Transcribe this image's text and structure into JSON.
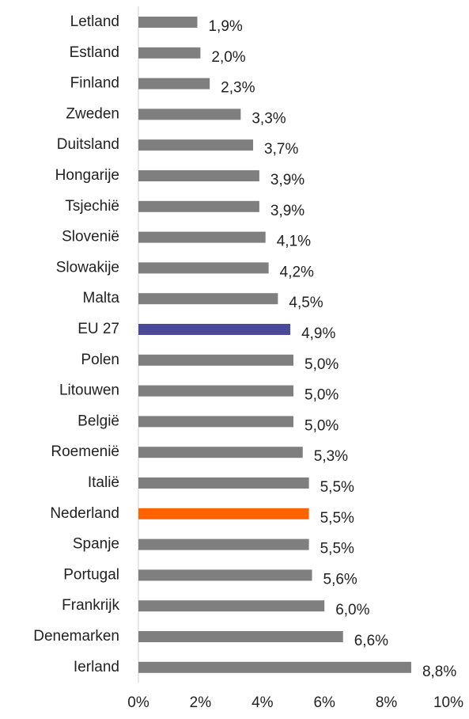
{
  "chart_data": {
    "type": "barh",
    "categories": [
      "Letland",
      "Estland",
      "Finland",
      "Zweden",
      "Duitsland",
      "Hongarije",
      "Tsjechië",
      "Slovenië",
      "Slowakije",
      "Malta",
      "EU 27",
      "Polen",
      "Litouwen",
      "België",
      "Roemenië",
      "Italië",
      "Nederland",
      "Spanje",
      "Portugal",
      "Frankrijk",
      "Denemarken",
      "Ierland"
    ],
    "values": [
      1.9,
      2.0,
      2.3,
      3.3,
      3.7,
      3.9,
      3.9,
      4.1,
      4.2,
      4.5,
      4.9,
      5.0,
      5.0,
      5.0,
      5.3,
      5.5,
      5.5,
      5.5,
      5.6,
      6.0,
      6.6,
      8.8
    ],
    "value_labels": [
      "1,9%",
      "2,0%",
      "2,3%",
      "3,3%",
      "3,7%",
      "3,9%",
      "3,9%",
      "4,1%",
      "4,2%",
      "4,5%",
      "4,9%",
      "5,0%",
      "5,0%",
      "5,0%",
      "5,3%",
      "5,5%",
      "5,5%",
      "5,5%",
      "5,6%",
      "6,0%",
      "6,6%",
      "8,8%"
    ],
    "colors": [
      "#7f7f7f",
      "#7f7f7f",
      "#7f7f7f",
      "#7f7f7f",
      "#7f7f7f",
      "#7f7f7f",
      "#7f7f7f",
      "#7f7f7f",
      "#7f7f7f",
      "#7f7f7f",
      "#4b4a99",
      "#7f7f7f",
      "#7f7f7f",
      "#7f7f7f",
      "#7f7f7f",
      "#7f7f7f",
      "#ff6200",
      "#7f7f7f",
      "#7f7f7f",
      "#7f7f7f",
      "#7f7f7f",
      "#7f7f7f"
    ],
    "xlim": [
      0,
      10
    ],
    "xticks": [
      {
        "value": 0,
        "label": "0%"
      },
      {
        "value": 2,
        "label": "2%"
      },
      {
        "value": 4,
        "label": "4%"
      },
      {
        "value": 6,
        "label": "6%"
      },
      {
        "value": 8,
        "label": "8%"
      },
      {
        "value": 10,
        "label": "10%"
      }
    ]
  }
}
